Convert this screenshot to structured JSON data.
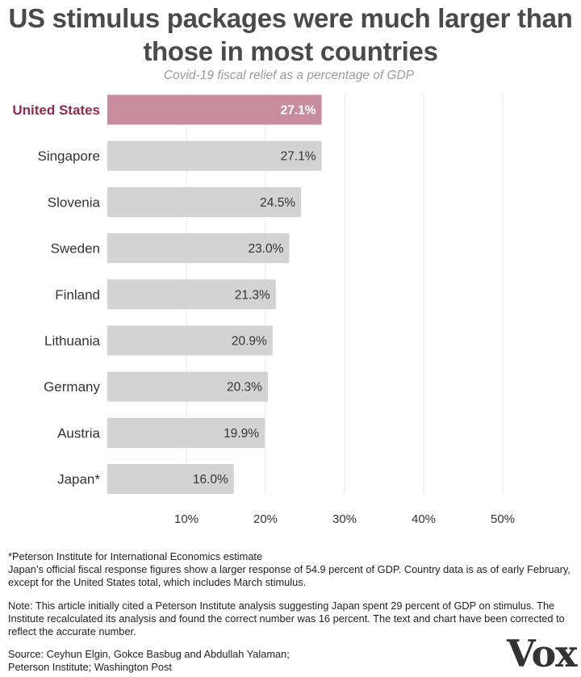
{
  "chart_data": {
    "type": "bar",
    "orientation": "horizontal",
    "title": "US stimulus packages were much larger than those in most countries",
    "subtitle": "Covid-19 fiscal relief as a percentage of GDP",
    "categories": [
      "United States",
      "Singapore",
      "Slovenia",
      "Sweden",
      "Finland",
      "Lithuania",
      "Germany",
      "Austria",
      "Japan*"
    ],
    "values": [
      27.1,
      27.1,
      24.5,
      23.0,
      21.3,
      20.9,
      20.3,
      19.9,
      16.0
    ],
    "value_labels": [
      "27.1%",
      "27.1%",
      "24.5%",
      "23.0%",
      "21.3%",
      "20.9%",
      "20.3%",
      "19.9%",
      "16.0%"
    ],
    "highlight": "United States",
    "xlim": [
      0,
      50
    ],
    "xticks": [
      10,
      20,
      30,
      40,
      50
    ],
    "xtick_labels": [
      "10%",
      "20%",
      "30%",
      "40%",
      "50%"
    ],
    "grid": "vertical",
    "colors": {
      "highlight_bar": "#c98b9e",
      "highlight_label": "#8e2b4f",
      "bar": "#d3d3d3",
      "grid": "#e4e4e4",
      "text": "#333333"
    }
  },
  "notes": {
    "footnote_1": "*Peterson Institute for International Economics estimate",
    "footnote_2": "Japan’s official fiscal response figures show a larger response of 54.9 percent of GDP. Country data is as of early February, except for the United States total, which includes March stimulus.",
    "note": "Note: This article initially cited a Peterson Institute analysis suggesting Japan spent 29 percent of GDP on stimulus. The Institute recalculated its analysis and found the correct number was 16 percent. The text and chart have been corrected to reflect the accurate number.",
    "source_line_1": "Source: Ceyhun Elgin, Gokce Basbug and Abdullah Yalaman;",
    "source_line_2": "Peterson Institute; Washington Post"
  },
  "logo": {
    "text": "Vox"
  }
}
